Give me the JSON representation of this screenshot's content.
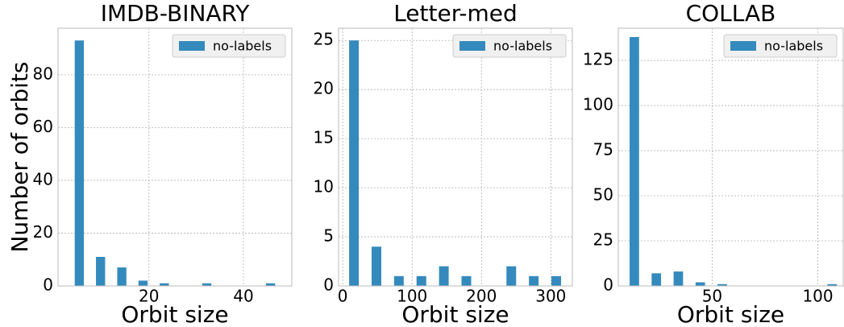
{
  "chart_data": [
    {
      "type": "histogram",
      "title": "IMDB-BINARY",
      "xlabel": "Orbit size",
      "ylabel": "Number of orbits",
      "bins": [
        3,
        7.5,
        12,
        16.5,
        21,
        25.5,
        30,
        34.5,
        39,
        43.5,
        48
      ],
      "series": [
        {
          "name": "no-labels",
          "color": "#348abd",
          "values": [
            93,
            11,
            7,
            2,
            1,
            0,
            1,
            0,
            0,
            1
          ]
        }
      ],
      "xlim": [
        0.75,
        50.25
      ],
      "xticks": [
        20,
        40
      ],
      "ylim": [
        0,
        97.65
      ],
      "yticks": [
        0,
        20,
        40,
        60,
        80
      ],
      "grid": true,
      "legend": "upper right"
    },
    {
      "type": "histogram",
      "title": "Letter-med",
      "xlabel": "Orbit size",
      "bins": [
        0,
        32.4,
        64.8,
        97.2,
        129.6,
        162,
        194.4,
        226.8,
        259.2,
        291.6,
        324
      ],
      "series": [
        {
          "name": "no-labels",
          "color": "#348abd",
          "values": [
            25,
            4,
            1,
            1,
            2,
            1,
            0,
            2,
            1,
            1
          ]
        }
      ],
      "xlim": [
        -6,
        331
      ],
      "xticks": [
        0,
        100,
        200,
        300
      ],
      "ylim": [
        0,
        26.25
      ],
      "yticks": [
        0,
        5,
        10,
        15,
        20,
        25
      ],
      "grid": true,
      "legend": "upper right"
    },
    {
      "type": "histogram",
      "title": "COLLAB",
      "xlabel": "Orbit size",
      "bins": [
        8,
        18.4,
        28.8,
        39.2,
        49.6,
        60,
        70.4,
        80.8,
        91.2,
        101.6,
        112
      ],
      "series": [
        {
          "name": "no-labels",
          "color": "#348abd",
          "values": [
            138,
            7,
            8,
            2,
            1,
            0,
            0,
            0,
            0,
            1
          ]
        }
      ],
      "xlim": [
        5.6,
        112
      ],
      "xticks": [
        50,
        100
      ],
      "ylim": [
        0,
        142.9
      ],
      "yticks": [
        0,
        25,
        50,
        75,
        100,
        125
      ],
      "grid": true,
      "legend": "upper right"
    }
  ]
}
